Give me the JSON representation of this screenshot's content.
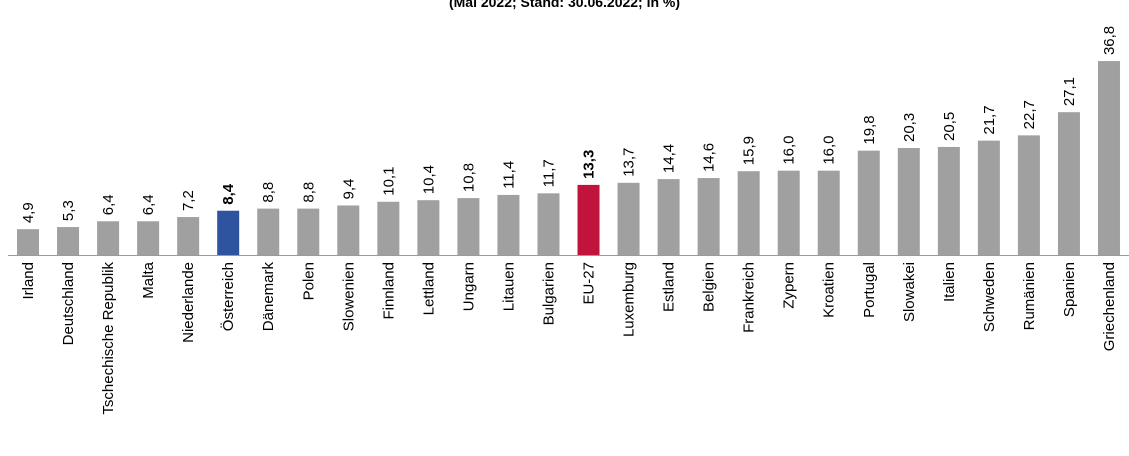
{
  "chart_data": {
    "type": "bar",
    "subtitle": "(Mai 2022; Stand: 30.06.2022; in %)",
    "categories": [
      "Irland",
      "Deutschland",
      "Tschechische Republik",
      "Malta",
      "Niederlande",
      "Österreich",
      "Dänemark",
      "Polen",
      "Slowenien",
      "Finnland",
      "Lettland",
      "Ungarn",
      "Litauen",
      "Bulgarien",
      "EU-27",
      "Luxemburg",
      "Estland",
      "Belgien",
      "Frankreich",
      "Zypern",
      "Kroatien",
      "Portugal",
      "Slowakei",
      "Italien",
      "Schweden",
      "Rumänien",
      "Spanien",
      "Griechenland"
    ],
    "values": [
      4.9,
      5.3,
      6.4,
      6.4,
      7.2,
      8.4,
      8.8,
      8.8,
      9.4,
      10.1,
      10.4,
      10.8,
      11.4,
      11.7,
      13.3,
      13.7,
      14.4,
      14.6,
      15.9,
      16.0,
      16.0,
      19.8,
      20.3,
      20.5,
      21.7,
      22.7,
      27.1,
      36.8
    ],
    "value_labels": [
      "4,9",
      "5,3",
      "6,4",
      "6,4",
      "7,2",
      "8,4",
      "8,8",
      "8,8",
      "9,4",
      "10,1",
      "10,4",
      "10,8",
      "11,4",
      "11,7",
      "13,3",
      "13,7",
      "14,4",
      "14,6",
      "15,9",
      "16,0",
      "16,0",
      "19,8",
      "20,3",
      "20,5",
      "21,7",
      "22,7",
      "27,1",
      "36,8"
    ],
    "highlight": {
      "Österreich": "#2e539f",
      "EU-27": "#c0143c"
    },
    "bold_categories": [
      "Österreich",
      "EU-27"
    ],
    "bar_color": "#a0a0a0",
    "ylim": [
      0,
      37
    ],
    "grid": false,
    "legend": "none"
  }
}
